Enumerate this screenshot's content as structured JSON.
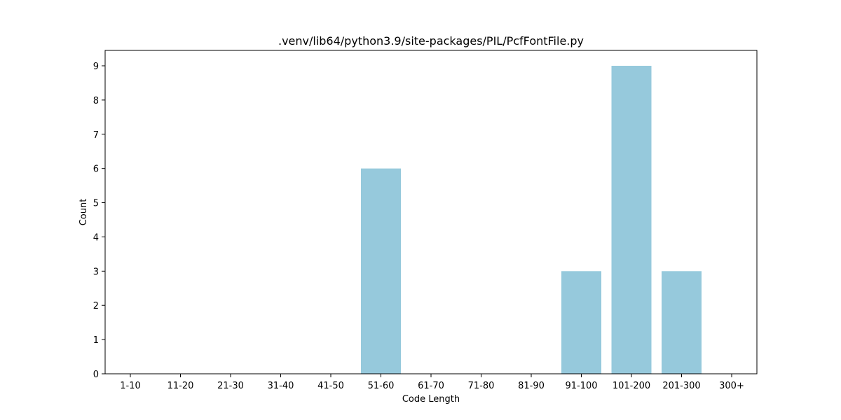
{
  "chart_data": {
    "type": "bar",
    "title": ".venv/lib64/python3.9/site-packages/PIL/PcfFontFile.py",
    "xlabel": "Code Length",
    "ylabel": "Count",
    "categories": [
      "1-10",
      "11-20",
      "21-30",
      "31-40",
      "41-50",
      "51-60",
      "61-70",
      "71-80",
      "81-90",
      "91-100",
      "101-200",
      "201-300",
      "300+"
    ],
    "values": [
      0,
      0,
      0,
      0,
      0,
      6,
      0,
      0,
      0,
      3,
      9,
      3,
      0
    ],
    "ylim": [
      0,
      9.45
    ],
    "yticks": [
      0,
      1,
      2,
      3,
      4,
      5,
      6,
      7,
      8,
      9
    ],
    "grid": false,
    "bar_color": "#96c9dc"
  }
}
